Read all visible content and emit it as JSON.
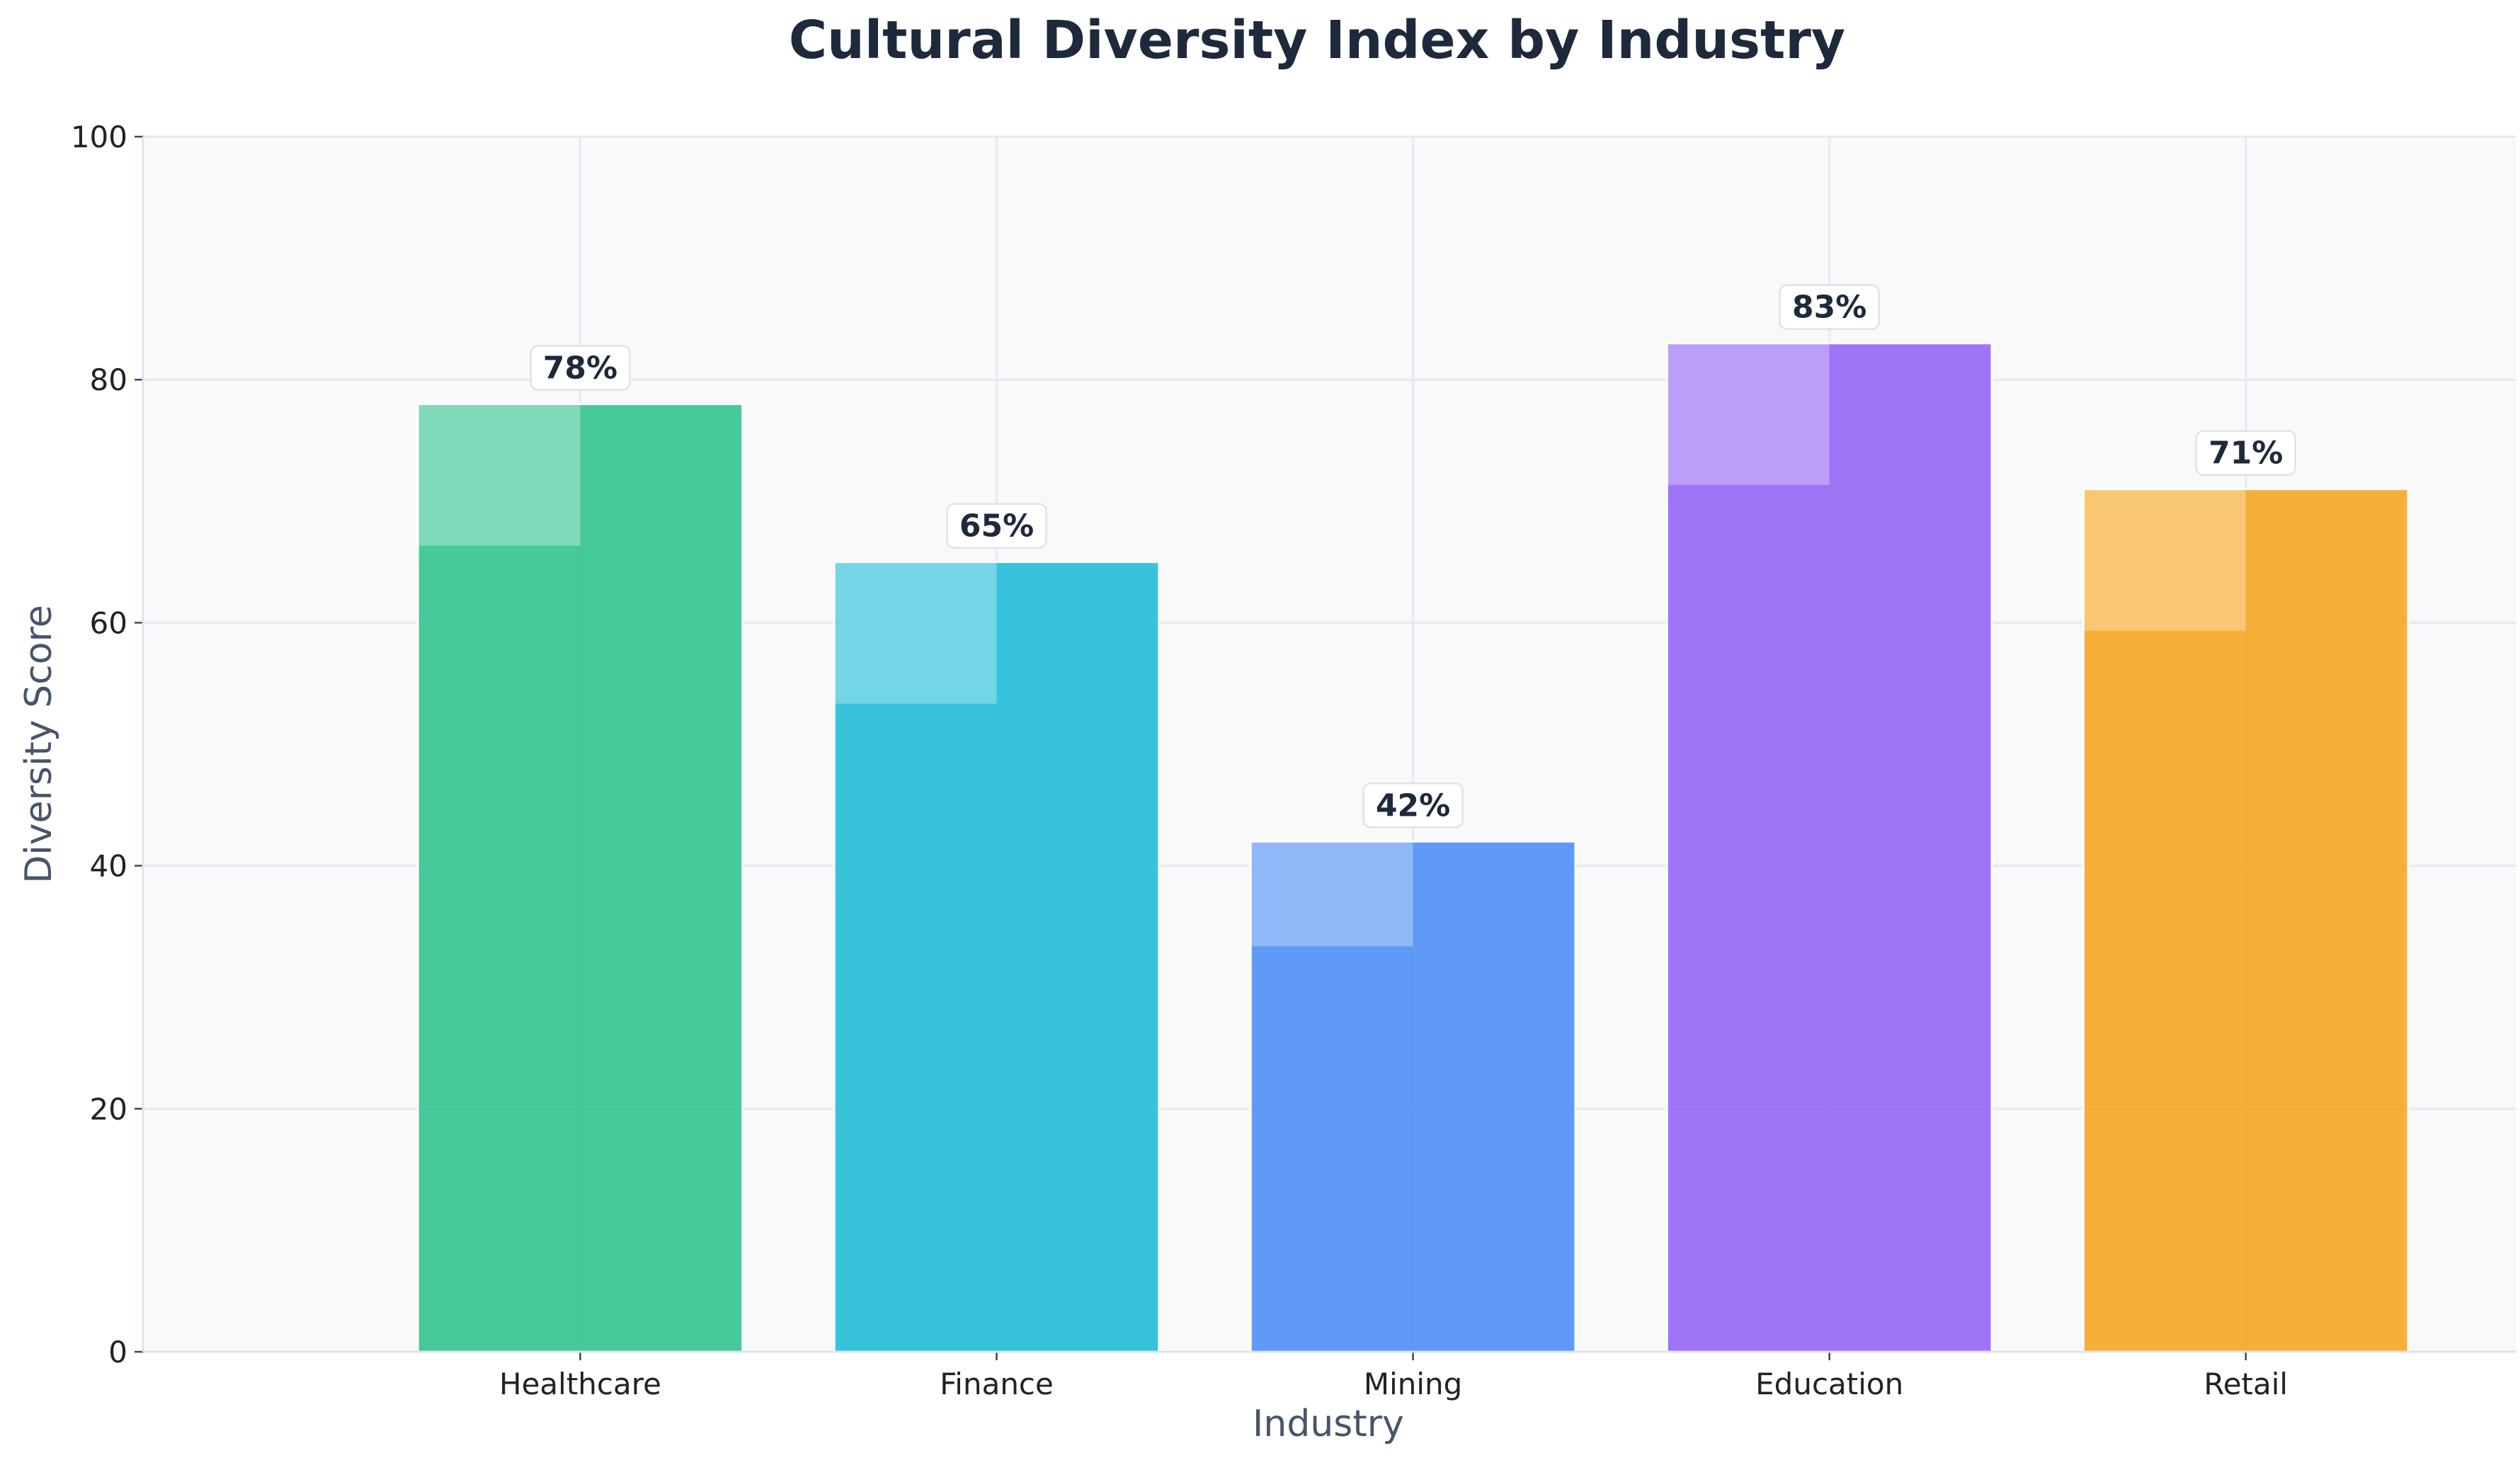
{
  "chart_data": {
    "type": "bar",
    "title": "Cultural Diversity Index by Industry",
    "xlabel": "Industry",
    "ylabel": "Diversity Score",
    "categories": [
      "Healthcare",
      "Finance",
      "Mining",
      "Education",
      "Retail"
    ],
    "values": [
      78,
      65,
      42,
      83,
      71
    ],
    "value_labels": [
      "78%",
      "65%",
      "42%",
      "83%",
      "71%"
    ],
    "colors": [
      "#34c38f",
      "#22bcd9",
      "#4f8ff5",
      "#9466f5",
      "#f5a623"
    ],
    "ylim": [
      0,
      100
    ],
    "yticks": [
      "0",
      "20",
      "40",
      "60",
      "80",
      "100"
    ],
    "grid": true,
    "plot_background": "#f8f9fb"
  }
}
